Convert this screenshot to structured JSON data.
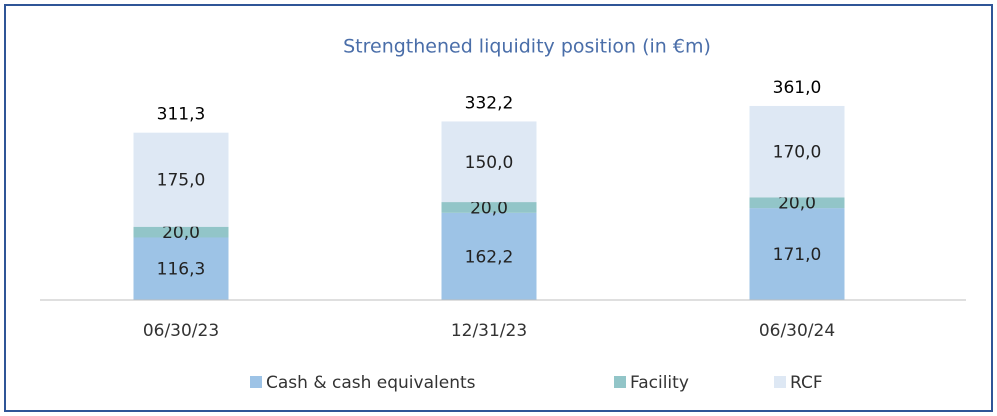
{
  "chart_data": {
    "type": "bar",
    "stacked": true,
    "title": "Strengthened liquidity position (in €m)",
    "categories": [
      "06/30/23",
      "12/31/23",
      "06/30/24"
    ],
    "series": [
      {
        "name": "Cash & cash equivalents",
        "color": "#9dc3e6",
        "values": [
          116.3,
          162.2,
          171.0
        ],
        "value_labels": [
          "116,3",
          "162,2",
          "171,0"
        ]
      },
      {
        "name": "Facility",
        "color": "#92c5c8",
        "values": [
          20,
          20,
          20
        ],
        "value_labels": [
          "20,0",
          "20,0",
          "20,0"
        ]
      },
      {
        "name": "RCF",
        "color": "#dee8f4",
        "values": [
          175,
          150,
          170
        ],
        "value_labels": [
          "175,0",
          "150,0",
          "170,0"
        ]
      }
    ],
    "totals": [
      311.3,
      332.2,
      361.0
    ],
    "total_labels": [
      "311,3",
      "332,2",
      "361,0"
    ],
    "ylim": [
      0,
      400
    ],
    "grid": false,
    "legend": "bottom"
  }
}
